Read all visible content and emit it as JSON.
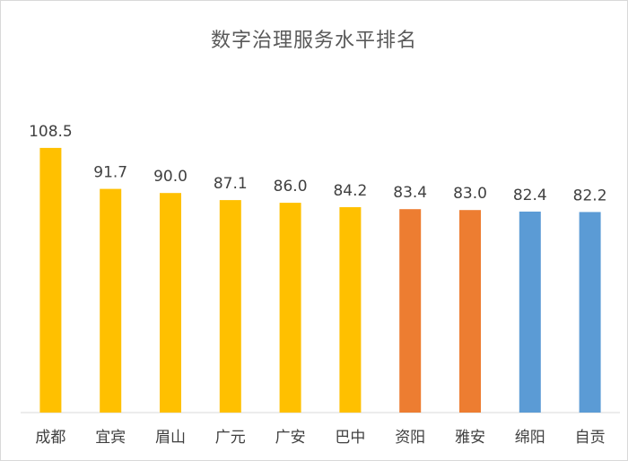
{
  "chart_data": {
    "type": "bar",
    "title": "数字治理服务水平排名",
    "categories": [
      "成都",
      "宜宾",
      "眉山",
      "广元",
      "广安",
      "巴中",
      "资阳",
      "雅安",
      "绵阳",
      "自贡"
    ],
    "values": [
      108.5,
      91.7,
      90.0,
      87.1,
      86.0,
      84.2,
      83.4,
      83.0,
      82.4,
      82.2
    ],
    "value_labels": [
      "108.5",
      "91.7",
      "90.0",
      "87.1",
      "86.0",
      "84.2",
      "83.4",
      "83.0",
      "82.4",
      "82.2"
    ],
    "bar_colors": [
      "#FFC000",
      "#FFC000",
      "#FFC000",
      "#FFC000",
      "#FFC000",
      "#FFC000",
      "#ED7D31",
      "#ED7D31",
      "#5B9BD5",
      "#5B9BD5"
    ],
    "xlabel": "",
    "ylabel": "",
    "ylim": [
      0,
      120
    ],
    "grid": false,
    "legend": "none"
  }
}
